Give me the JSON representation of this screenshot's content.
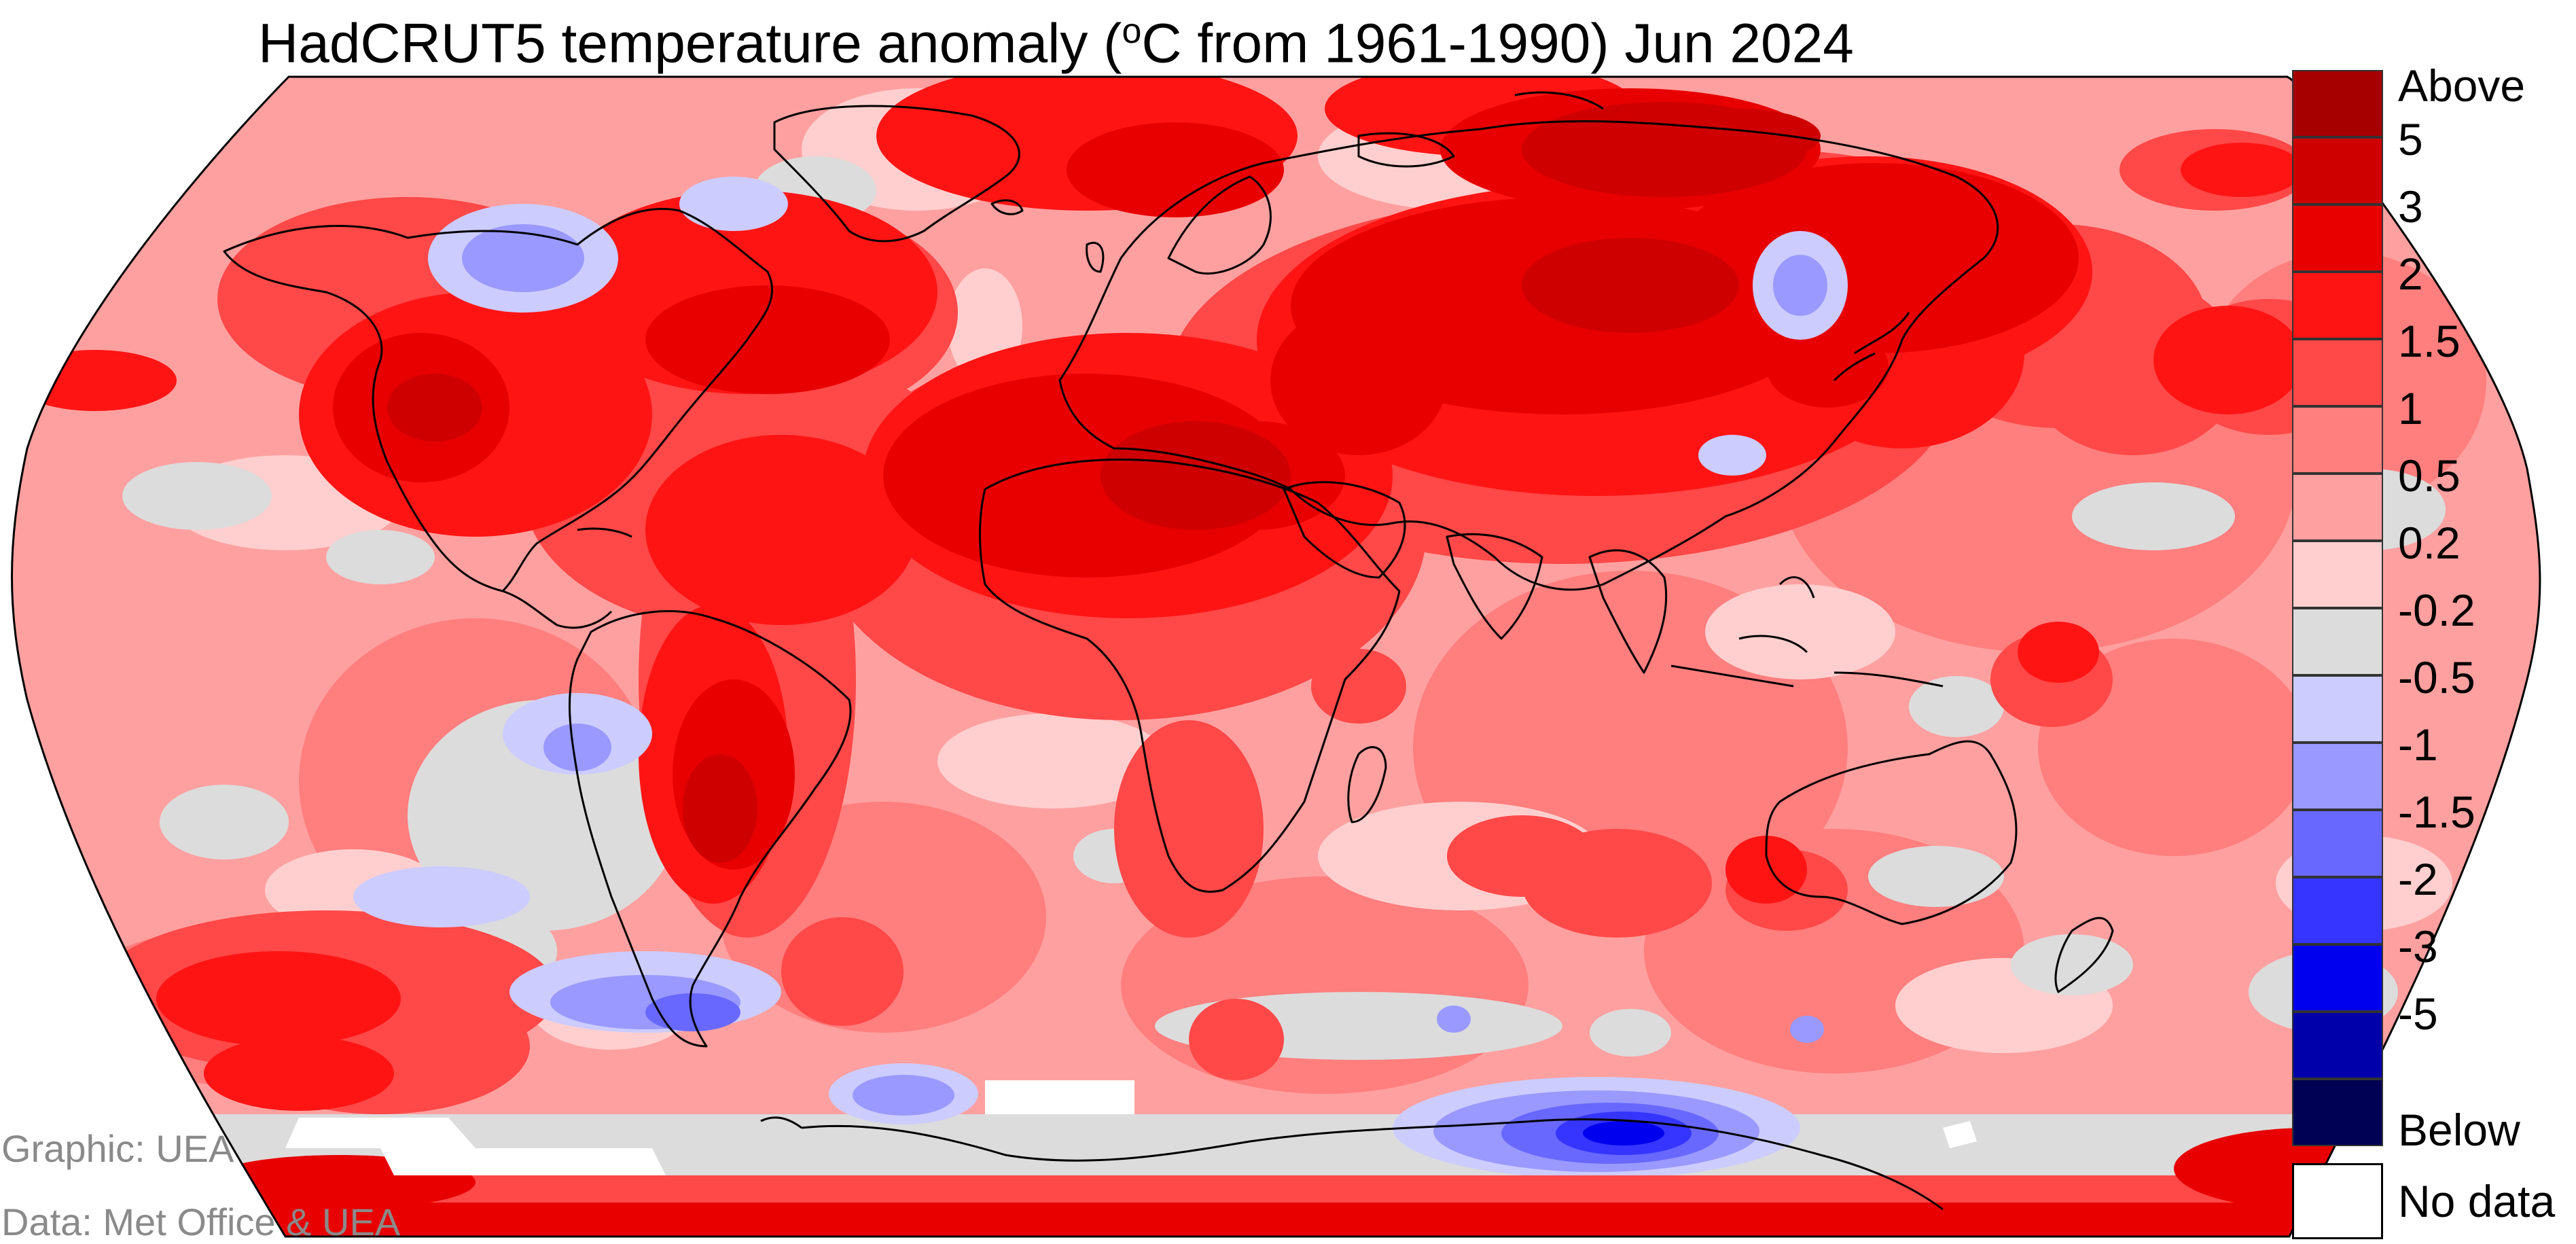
{
  "title": {
    "main": "HadCRUT5 temperature anomaly (",
    "degree_sup": "o",
    "rest": "C from 1961-1990) Jun 2024"
  },
  "credits": {
    "graphic": "Graphic: UEA",
    "data": "Data: Met Office & UEA"
  },
  "legend": {
    "bins": [
      {
        "color": "#a70000",
        "label": "Above"
      },
      {
        "color": "#cf0000",
        "label": "5"
      },
      {
        "color": "#e80000",
        "label": "3"
      },
      {
        "color": "#ff1414",
        "label": "2"
      },
      {
        "color": "#ff4848",
        "label": "1.5"
      },
      {
        "color": "#ff7e7e",
        "label": "1"
      },
      {
        "color": "#ffa0a0",
        "label": "0.5"
      },
      {
        "color": "#ffcfcf",
        "label": "0.2"
      },
      {
        "color": "#dcdcdc",
        "label": "-0.2"
      },
      {
        "color": "#ccccff",
        "label": "-0.5"
      },
      {
        "color": "#9999ff",
        "label": "-1"
      },
      {
        "color": "#6868ff",
        "label": "-1.5"
      },
      {
        "color": "#3535ff",
        "label": "-2"
      },
      {
        "color": "#0000ee",
        "label": "-3"
      },
      {
        "color": "#0000aa",
        "label": "-5"
      },
      {
        "color": "#000055",
        "label": "Below"
      }
    ],
    "nodata_label": "No data",
    "nodata_color": "#ffffff"
  },
  "map": {
    "projection": "Robinson",
    "base_color": "#ffa0a0"
  }
}
